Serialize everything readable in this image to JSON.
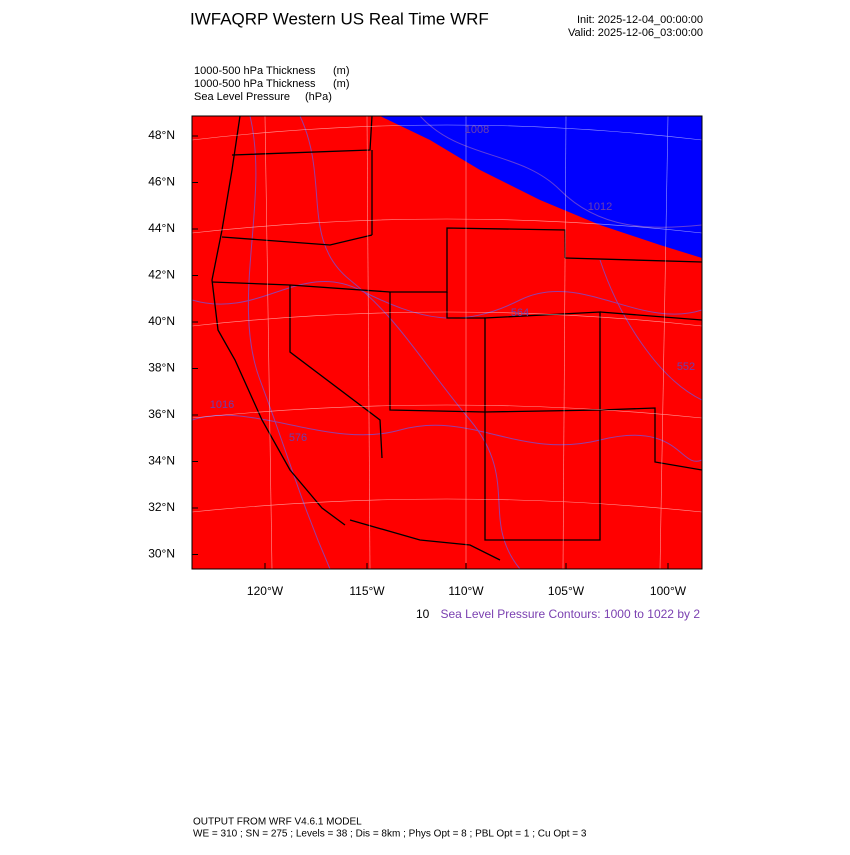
{
  "header": {
    "title": "IWFAQRP Western US Real Time WRF",
    "init": "Init: 2025-12-04_00:00:00",
    "valid": "Valid: 2025-12-06_03:00:00"
  },
  "fields": [
    {
      "name": "1000-500 hPa Thickness",
      "unit": "(m)"
    },
    {
      "name": "1000-500 hPa Thickness",
      "unit": "(m)"
    },
    {
      "name": "Sea Level Pressure",
      "unit": "(hPa)"
    }
  ],
  "map": {
    "lat_labels": [
      "48°N",
      "46°N",
      "44°N",
      "42°N",
      "40°N",
      "38°N",
      "36°N",
      "34°N",
      "32°N",
      "30°N"
    ],
    "lon_labels": [
      "120°W",
      "115°W",
      "110°W",
      "105°W",
      "100°W"
    ],
    "contour_labels": [
      "1008",
      "1012",
      "552",
      "564",
      "576",
      "1016"
    ]
  },
  "notes": {
    "clipped": "10",
    "contours": "Sea Level Pressure Contours: 1000 to 1022 by 2"
  },
  "footer": {
    "model": "OUTPUT FROM WRF V4.6.1 MODEL",
    "settings": "WE = 310 ; SN = 275 ; Levels = 38 ; Dis = 8km ; Phys Opt = 8 ; PBL Opt = 1 ; Cu Opt = 3"
  }
}
